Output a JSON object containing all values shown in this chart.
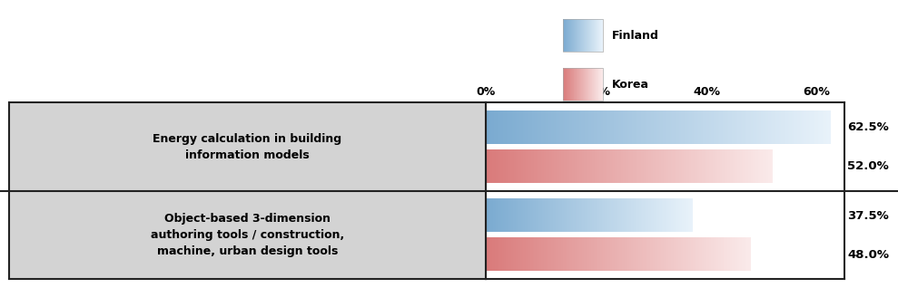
{
  "categories": [
    "Energy calculation in building\ninformation models",
    "Object-based 3-dimension\nauthoring tools / construction,\nmachine, urban design tools"
  ],
  "finland_values": [
    62.5,
    37.5
  ],
  "korea_values": [
    52.0,
    48.0
  ],
  "finland_labels": [
    "62.5%",
    "37.5%"
  ],
  "korea_labels": [
    "52.0%",
    "48.0%"
  ],
  "finland_color_solid": "#7aaad0",
  "finland_color_light": "#e8f2fa",
  "korea_color_solid": "#d97a7a",
  "korea_color_light": "#faeaea",
  "label_bg_color": "#d3d3d3",
  "x_ticks": [
    0,
    20,
    40,
    60
  ],
  "x_tick_labels": [
    "0%",
    "20%",
    "40%",
    "60%"
  ],
  "xlim_max": 65,
  "legend_finland": "Finland",
  "legend_korea": "Korea",
  "border_color": "#222222",
  "separator_color": "#222222"
}
